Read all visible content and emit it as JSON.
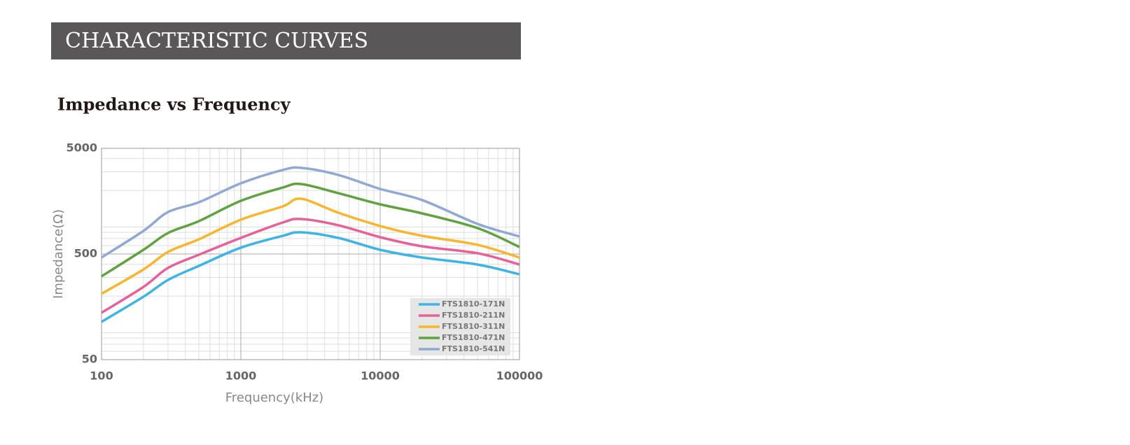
{
  "header": {
    "title": "CHARACTERISTIC CURVES"
  },
  "chart_data": {
    "type": "line",
    "title": "Impedance vs Frequency",
    "x_label": "Frequency(kHz)",
    "y_label": "Impedance(Ω)",
    "x_log": true,
    "y_log": true,
    "grid": true,
    "minor_grid": true,
    "legend": "lower right",
    "xlim": [
      100,
      100000
    ],
    "xticks": [
      100,
      1000,
      10000,
      100000
    ],
    "ylim": [
      50,
      5000
    ],
    "yticks": [
      50,
      500,
      5000
    ],
    "x": [
      100,
      200,
      300,
      500,
      1000,
      2000,
      2700,
      5000,
      10000,
      20000,
      50000,
      100000
    ],
    "series": [
      {
        "name": "FTS1810-171N",
        "color": "#3cb4e6",
        "values": [
          114,
          197,
          284,
          386,
          574,
          743,
          802,
          710,
          548,
          463,
          397,
          321
        ]
      },
      {
        "name": "FTS1810-211N",
        "color": "#e8609a",
        "values": [
          139,
          244,
          369,
          492,
          710,
          993,
          1071,
          935,
          721,
          591,
          508,
          397
        ]
      },
      {
        "name": "FTS1810-311N",
        "color": "#f8b62d",
        "values": [
          210,
          357,
          523,
          689,
          1056,
          1410,
          1667,
          1230,
          920,
          743,
          610,
          463
        ]
      },
      {
        "name": "FTS1810-471N",
        "color": "#5ea33e",
        "values": [
          307,
          548,
          790,
          1023,
          1592,
          2128,
          2296,
          1883,
          1476,
          1211,
          879,
          582
        ]
      },
      {
        "name": "FTS1810-541N",
        "color": "#8fa8d6",
        "values": [
          463,
          827,
          1247,
          1545,
          2333,
          3117,
          3266,
          2800,
          2065,
          1619,
          963,
          732
        ]
      }
    ]
  }
}
